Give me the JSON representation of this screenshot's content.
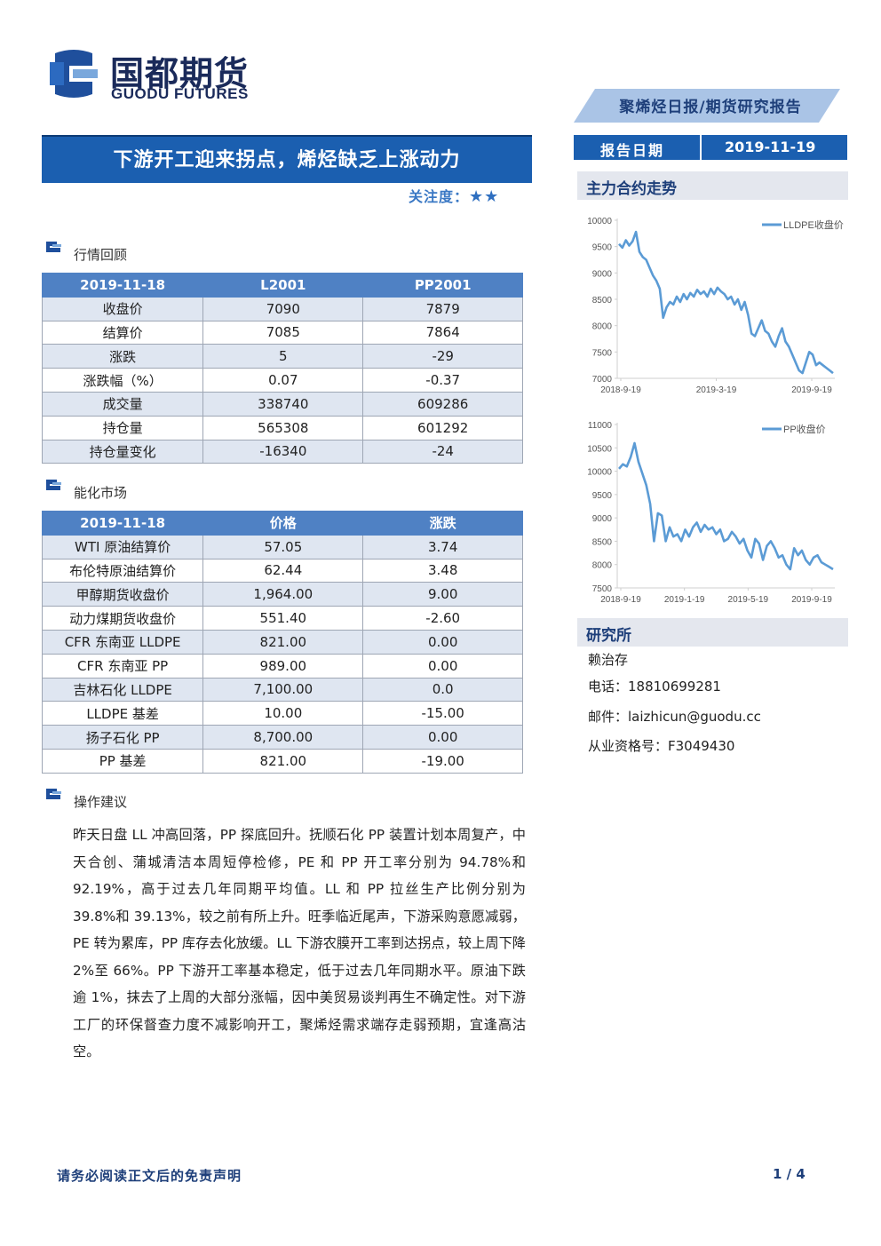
{
  "header": {
    "logo_cn": "国都期货",
    "logo_en": "GUODU FUTURES",
    "report_type": "聚烯烃日报/期货研究报告"
  },
  "headline": {
    "title": "下游开工迎来拐点，烯烃缺乏上涨动力",
    "focus_label": "关注度：",
    "focus_stars": "★★"
  },
  "report_date": {
    "label": "报告日期",
    "value": "2019-11-19"
  },
  "sections": {
    "market_review": "行情回顾",
    "energy_market": "能化市场",
    "operation": "操作建议",
    "main_trend": "主力合约走势",
    "institute": "研究所"
  },
  "market_table": {
    "headers": [
      "2019-11-18",
      "L2001",
      "PP2001"
    ],
    "rows": [
      [
        "收盘价",
        "7090",
        "7879"
      ],
      [
        "结算价",
        "7085",
        "7864"
      ],
      [
        "涨跌",
        "5",
        "-29"
      ],
      [
        "涨跌幅（%）",
        "0.07",
        "-0.37"
      ],
      [
        "成交量",
        "338740",
        "609286"
      ],
      [
        "持仓量",
        "565308",
        "601292"
      ],
      [
        "持仓量变化",
        "-16340",
        "-24"
      ]
    ]
  },
  "energy_table": {
    "headers": [
      "2019-11-18",
      "价格",
      "涨跌"
    ],
    "rows": [
      [
        "WTI 原油结算价",
        "57.05",
        "3.74"
      ],
      [
        "布伦特原油结算价",
        "62.44",
        "3.48"
      ],
      [
        "甲醇期货收盘价",
        "1,964.00",
        "9.00"
      ],
      [
        "动力煤期货收盘价",
        "551.40",
        "-2.60"
      ],
      [
        "CFR 东南亚 LLDPE",
        "821.00",
        "0.00"
      ],
      [
        "CFR 东南亚 PP",
        "989.00",
        "0.00"
      ],
      [
        "吉林石化 LLDPE",
        "7,100.00",
        "0.0"
      ],
      [
        "LLDPE 基差",
        "10.00",
        "-15.00"
      ],
      [
        "扬子石化 PP",
        "8,700.00",
        "0.00"
      ],
      [
        "PP 基差",
        "821.00",
        "-19.00"
      ]
    ]
  },
  "operation_text": "昨天日盘 LL 冲高回落，PP 探底回升。抚顺石化 PP 装置计划本周复产，中天合创、蒲城清洁本周短停检修，PE 和 PP 开工率分别为 94.78%和 92.19%，高于过去几年同期平均值。LL 和 PP 拉丝生产比例分别为 39.8%和 39.13%，较之前有所上升。旺季临近尾声，下游采购意愿减弱，PE 转为累库，PP 库存去化放缓。LL 下游农膜开工率到达拐点，较上周下降 2%至 66%。PP 下游开工率基本稳定，低于过去几年同期水平。原油下跌逾 1%，抹去了上周的大部分涨幅，因中美贸易谈判再生不确定性。对下游工厂的环保督查力度不减影响开工，聚烯烃需求端存走弱预期，宜逢高沽空。",
  "institute": {
    "name": "赖治存",
    "phone": "电话：18810699281",
    "email": "邮件：laizhicun@guodu.cc",
    "license": "从业资格号：F3049430"
  },
  "footer": {
    "disclaimer": "请务必阅读正文后的免责声明",
    "page": "1 / 4"
  },
  "colors": {
    "primary": "#1b5fb0",
    "table_header": "#4f81c4",
    "table_alt": "#dfe6f1",
    "line": "#5b9bd5",
    "navy": "#1e3f7a"
  },
  "chart_data": [
    {
      "type": "line",
      "legend": "LLDPE收盘价",
      "xticks": [
        "2018-9-19",
        "2019-3-19",
        "2019-9-19"
      ],
      "ylim": [
        7000,
        10000
      ],
      "yticks": [
        7000,
        7500,
        8000,
        8500,
        9000,
        9500,
        10000
      ],
      "series": [
        {
          "name": "LLDPE收盘价",
          "values": [
            9550,
            9480,
            9620,
            9520,
            9600,
            9780,
            9400,
            9300,
            9250,
            9100,
            8950,
            8850,
            8700,
            8150,
            8350,
            8450,
            8400,
            8550,
            8450,
            8600,
            8500,
            8620,
            8550,
            8680,
            8600,
            8650,
            8550,
            8700,
            8600,
            8720,
            8650,
            8600,
            8500,
            8550,
            8400,
            8500,
            8300,
            8450,
            8200,
            7850,
            7800,
            7950,
            8100,
            7900,
            7850,
            7700,
            7600,
            7800,
            7950,
            7700,
            7600,
            7450,
            7300,
            7150,
            7100,
            7300,
            7500,
            7450,
            7250,
            7300,
            7250,
            7200,
            7150,
            7100
          ]
        }
      ]
    },
    {
      "type": "line",
      "legend": "PP收盘价",
      "xticks": [
        "2018-9-19",
        "2019-1-19",
        "2019-5-19",
        "2019-9-19"
      ],
      "ylim": [
        7500,
        11000
      ],
      "yticks": [
        7500,
        8000,
        8500,
        9000,
        9500,
        10000,
        10500,
        11000
      ],
      "series": [
        {
          "name": "PP收盘价",
          "values": [
            10050,
            10150,
            10100,
            10300,
            10600,
            10200,
            9950,
            9700,
            9300,
            8500,
            9100,
            9050,
            8500,
            8800,
            8600,
            8650,
            8500,
            8750,
            8600,
            8800,
            8900,
            8700,
            8850,
            8750,
            8800,
            8650,
            8750,
            8500,
            8550,
            8700,
            8600,
            8450,
            8550,
            8300,
            8150,
            8550,
            8450,
            8100,
            8400,
            8500,
            8350,
            8150,
            8200,
            8000,
            7900,
            8350,
            8200,
            8300,
            8100,
            8000,
            8150,
            8200,
            8050,
            8000,
            7950,
            7900
          ]
        }
      ]
    }
  ]
}
